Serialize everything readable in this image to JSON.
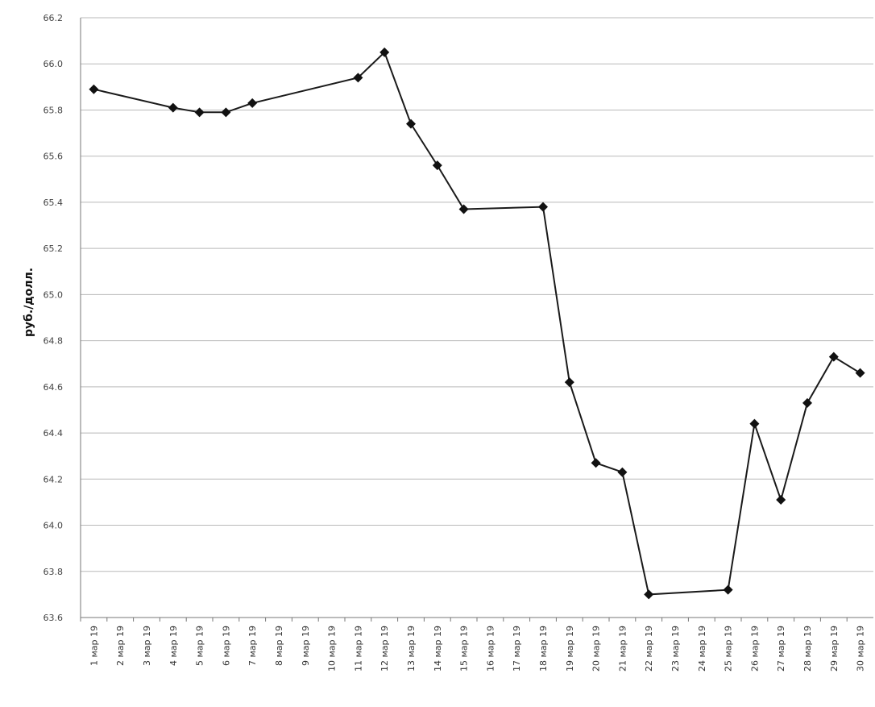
{
  "chart_data": {
    "type": "line",
    "title": "",
    "xlabel": "",
    "ylabel": "руб./долл.",
    "ylim": [
      63.6,
      66.2
    ],
    "y_ticks": [
      "63.6",
      "63.8",
      "64.0",
      "64.2",
      "64.4",
      "64.6",
      "64.8",
      "65.0",
      "65.2",
      "65.4",
      "65.6",
      "65.8",
      "66.0",
      "66.2"
    ],
    "categories": [
      "1 мар 19",
      "2 мар 19",
      "3 мар 19",
      "4 мар 19",
      "5 мар 19",
      "6 мар 19",
      "7 мар 19",
      "8 мар 19",
      "9 мар 19",
      "10 мар 19",
      "11 мар 19",
      "12 мар 19",
      "13 мар 19",
      "14 мар 19",
      "15 мар 19",
      "16 мар 19",
      "17 мар 19",
      "18 мар 19",
      "19 мар 19",
      "20 мар 19",
      "21 мар 19",
      "22 мар 19",
      "23 мар 19",
      "24 мар 19",
      "25 мар 19",
      "26 мар 19",
      "27 мар 19",
      "28 мар 19",
      "29 мар 19",
      "30 мар 19"
    ],
    "grid": true,
    "legend": "none",
    "colors": {
      "line": "#1a1a1a",
      "grid": "#b9b9b9"
    },
    "series": [
      {
        "points": [
          {
            "x": "1 мар 19",
            "y": 65.89
          },
          {
            "x": "4 мар 19",
            "y": 65.81
          },
          {
            "x": "5 мар 19",
            "y": 65.79
          },
          {
            "x": "6 мар 19",
            "y": 65.79
          },
          {
            "x": "7 мар 19",
            "y": 65.83
          },
          {
            "x": "11 мар 19",
            "y": 65.94
          },
          {
            "x": "12 мар 19",
            "y": 66.05
          },
          {
            "x": "13 мар 19",
            "y": 65.74
          },
          {
            "x": "14 мар 19",
            "y": 65.56
          },
          {
            "x": "15 мар 19",
            "y": 65.37
          },
          {
            "x": "18 мар 19",
            "y": 65.38
          },
          {
            "x": "19 мар 19",
            "y": 64.62
          },
          {
            "x": "20 мар 19",
            "y": 64.27
          },
          {
            "x": "21 мар 19",
            "y": 64.23
          },
          {
            "x": "22 мар 19",
            "y": 63.7
          },
          {
            "x": "25 мар 19",
            "y": 63.72
          },
          {
            "x": "26 мар 19",
            "y": 64.44
          },
          {
            "x": "27 мар 19",
            "y": 64.11
          },
          {
            "x": "28 мар 19",
            "y": 64.53
          },
          {
            "x": "29 мар 19",
            "y": 64.73
          },
          {
            "x": "30 мар 19",
            "y": 64.66
          }
        ]
      }
    ]
  }
}
